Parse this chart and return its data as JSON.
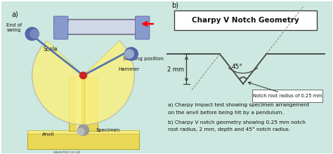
{
  "bg_color": "#cce8e0",
  "panel_bg": "#cce8e0",
  "title": "Charpy V Notch Geometry",
  "label_a": "a)",
  "label_b": "b)",
  "depth_label": "2 mm",
  "angle_label": "45°",
  "radius_label": "Notch root radius of 0.25 mm",
  "caption1": "a) Charpy Impact test showing specimen arrangement",
  "caption2": "on the anvil before being hit by a pendulum.",
  "caption3": "b) Charpy V notch geometry showing 0.25 mm notch",
  "caption4": "root radius, 2 mm, depth and 45° notch radius.",
  "line_color": "#222222",
  "dashed_color": "#888888",
  "white": "#ffffff",
  "text_color": "#111111",
  "yellow_fill": "#f0e060",
  "yellow_light": "#f8f0a0",
  "blue_steel": "#7788aa",
  "blue_hammer": "#8899bb",
  "gray_anvil": "#888888",
  "gray_specimen": "#aaaaaa",
  "pivot_red": "#cc2222",
  "twi_gray": "#666666",
  "scale_arc_color": "#bbbbbb",
  "notch_line": "#444444",
  "dim_line": "#333333"
}
